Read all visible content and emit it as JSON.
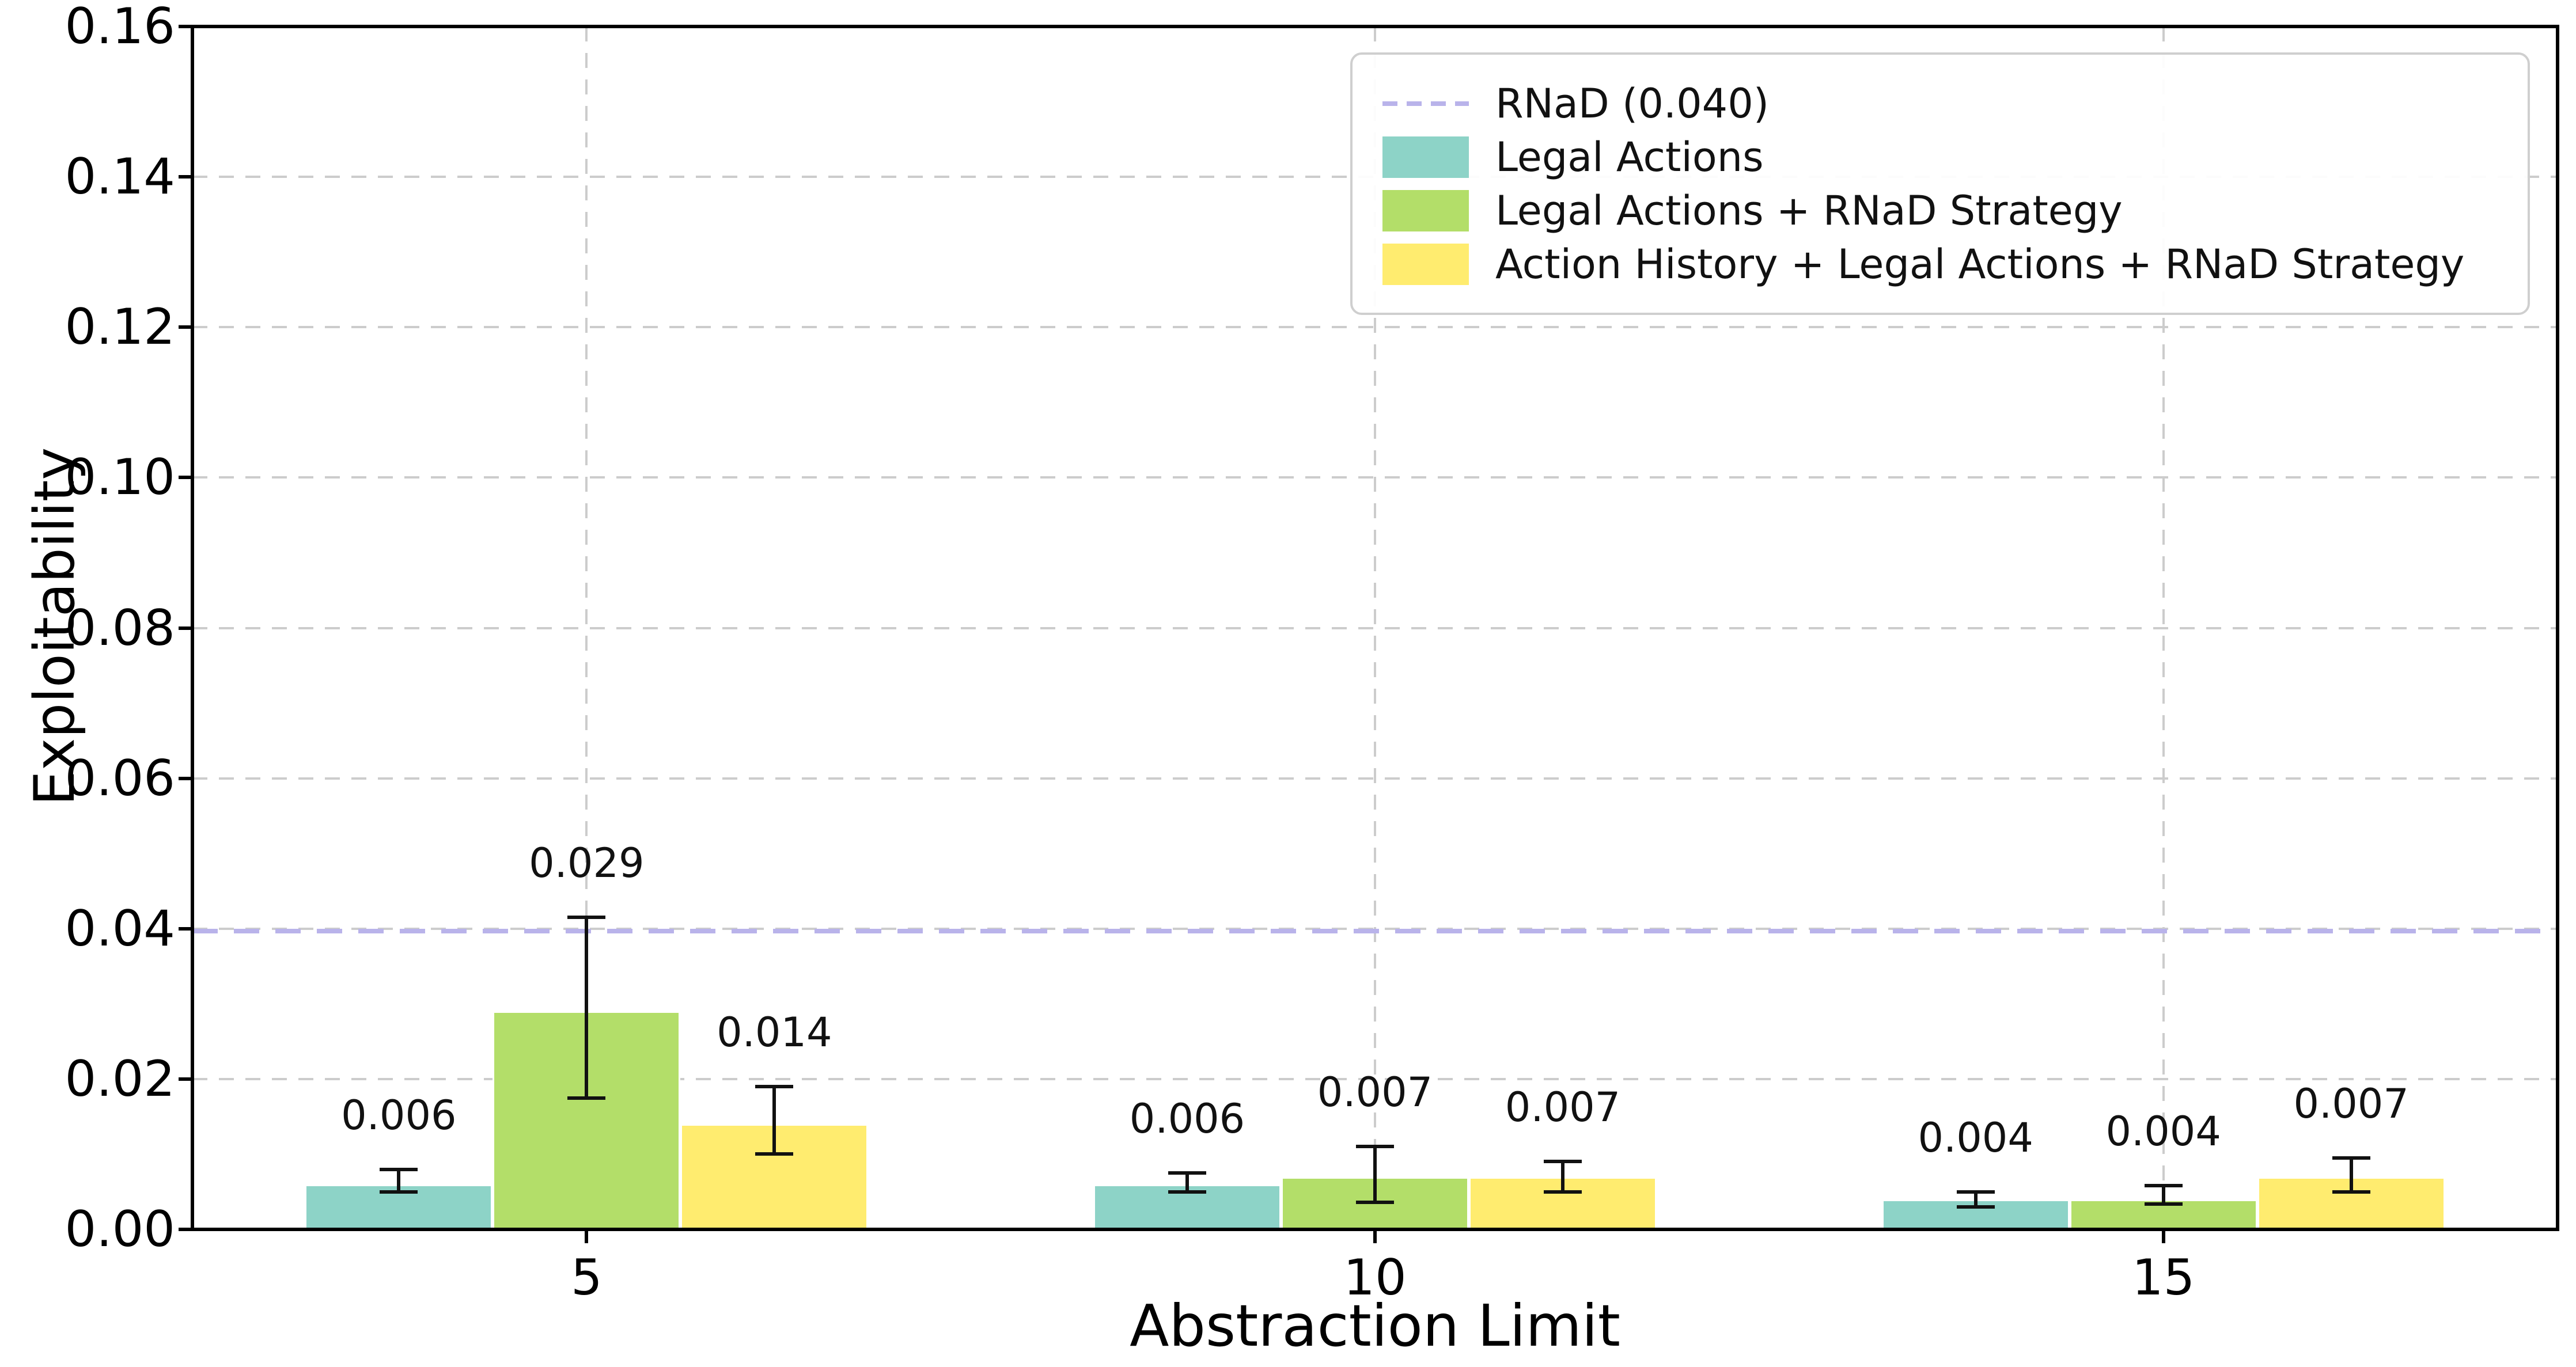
{
  "chart_data": {
    "type": "bar",
    "title": "",
    "xlabel": "Abstraction Limit",
    "ylabel": "Exploitability",
    "ylim": [
      0,
      0.16
    ],
    "ytick_labels": [
      "0.00",
      "0.02",
      "0.04",
      "0.06",
      "0.08",
      "0.10",
      "0.12",
      "0.14",
      "0.16"
    ],
    "categories": [
      "5",
      "10",
      "15"
    ],
    "grid": {
      "horizontal": true,
      "vertical": true,
      "style": "dashed",
      "color": "#cccccc"
    },
    "legend_position": "upper right",
    "reference_line": {
      "label": "RNaD (0.040)",
      "value": 0.04,
      "color": "#b9b3ea",
      "style": "dashed"
    },
    "series": [
      {
        "name": "Legal Actions",
        "color": "#8dd3c7",
        "values": [
          0.006,
          0.006,
          0.004
        ],
        "value_labels": [
          "0.006",
          "0.006",
          "0.004"
        ],
        "err_low": [
          0.005,
          0.005,
          0.003
        ],
        "err_high": [
          0.008,
          0.0075,
          0.005
        ]
      },
      {
        "name": "Legal Actions + RNaD Strategy",
        "color": "#b3de69",
        "values": [
          0.029,
          0.007,
          0.004
        ],
        "value_labels": [
          "0.029",
          "0.007",
          "0.004"
        ],
        "err_low": [
          0.0175,
          0.0036,
          0.0034
        ],
        "err_high": [
          0.0415,
          0.011,
          0.0058
        ]
      },
      {
        "name": "Action History + Legal Actions + RNaD Strategy",
        "color": "#ffec6f",
        "values": [
          0.014,
          0.007,
          0.007
        ],
        "value_labels": [
          "0.014",
          "0.007",
          "0.007"
        ],
        "err_low": [
          0.01,
          0.005,
          0.005
        ],
        "err_high": [
          0.019,
          0.009,
          0.0095
        ]
      }
    ]
  }
}
